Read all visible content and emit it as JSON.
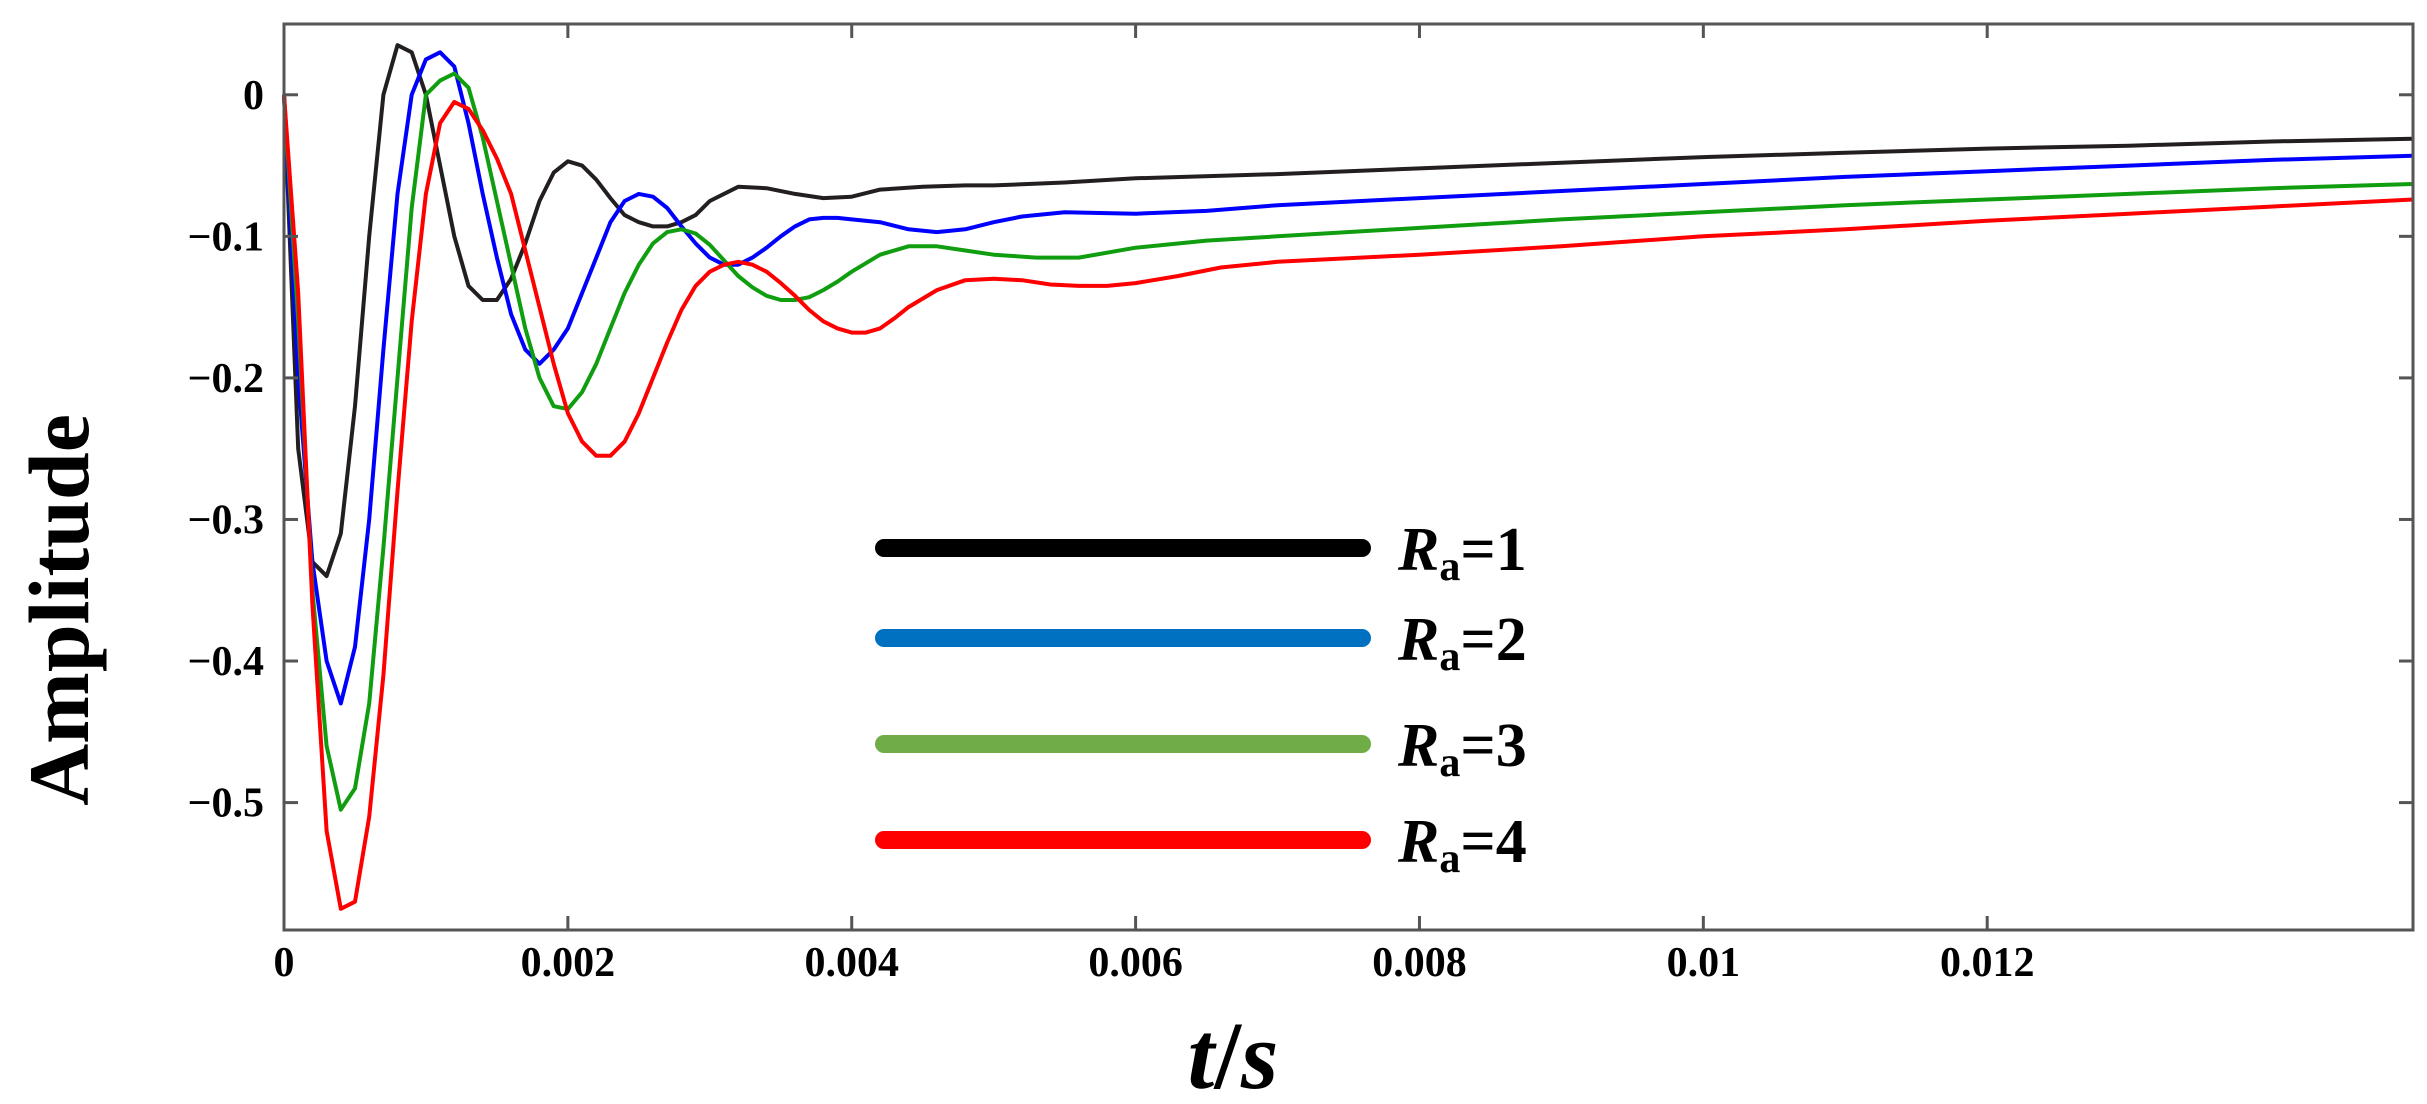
{
  "chart_data": {
    "type": "line",
    "title": "",
    "xlabel": {
      "var": "t",
      "sep": "/",
      "unit": "s"
    },
    "ylabel": "Amplitude",
    "xlim": [
      0,
      0.015
    ],
    "ylim": [
      -0.59,
      0.05
    ],
    "grid": false,
    "legend_position": "center",
    "x_ticks": [
      {
        "value": 0,
        "label": "0"
      },
      {
        "value": 0.002,
        "label": "0.002"
      },
      {
        "value": 0.004,
        "label": "0.004"
      },
      {
        "value": 0.006,
        "label": "0.006"
      },
      {
        "value": 0.008,
        "label": "0.008"
      },
      {
        "value": 0.01,
        "label": "0.01"
      },
      {
        "value": 0.012,
        "label": "0.012"
      }
    ],
    "y_ticks": [
      {
        "value": 0,
        "label": "0"
      },
      {
        "value": -0.1,
        "label": "−0.1"
      },
      {
        "value": -0.2,
        "label": "−0.2"
      },
      {
        "value": -0.3,
        "label": "−0.3"
      },
      {
        "value": -0.4,
        "label": "−0.4"
      },
      {
        "value": -0.5,
        "label": "−0.5"
      }
    ],
    "series": [
      {
        "name": "Ra=1",
        "label_var": "R",
        "label_sub": "a",
        "label_eq": "=1",
        "color": "#231f20",
        "legend_color": "#000000",
        "x": [
          0,
          0.0001,
          0.0002,
          0.0003,
          0.0004,
          0.0005,
          0.0006,
          0.0007,
          0.0008,
          0.0009,
          0.001,
          0.0011,
          0.0012,
          0.0013,
          0.0014,
          0.0015,
          0.0016,
          0.0017,
          0.0018,
          0.0019,
          0.002,
          0.0021,
          0.0022,
          0.0023,
          0.0024,
          0.0025,
          0.0026,
          0.0027,
          0.0028,
          0.0029,
          0.003,
          0.0032,
          0.0034,
          0.0036,
          0.0038,
          0.004,
          0.0042,
          0.0045,
          0.0048,
          0.005,
          0.0055,
          0.006,
          0.007,
          0.008,
          0.009,
          0.01,
          0.011,
          0.012,
          0.013,
          0.014,
          0.015
        ],
        "y": [
          0,
          -0.25,
          -0.33,
          -0.34,
          -0.31,
          -0.22,
          -0.1,
          0.0,
          0.035,
          0.03,
          0.0,
          -0.05,
          -0.1,
          -0.135,
          -0.145,
          -0.145,
          -0.13,
          -0.105,
          -0.075,
          -0.055,
          -0.047,
          -0.05,
          -0.06,
          -0.073,
          -0.085,
          -0.09,
          -0.093,
          -0.093,
          -0.09,
          -0.085,
          -0.075,
          -0.065,
          -0.066,
          -0.07,
          -0.073,
          -0.072,
          -0.067,
          -0.065,
          -0.064,
          -0.064,
          -0.062,
          -0.059,
          -0.056,
          -0.052,
          -0.048,
          -0.044,
          -0.041,
          -0.038,
          -0.036,
          -0.033,
          -0.031
        ]
      },
      {
        "name": "Ra=2",
        "label_var": "R",
        "label_sub": "a",
        "label_eq": "=2",
        "color": "#0000ff",
        "legend_color": "#0070c0",
        "x": [
          0,
          0.0001,
          0.0002,
          0.0003,
          0.0004,
          0.0005,
          0.0006,
          0.0007,
          0.0008,
          0.0009,
          0.001,
          0.0011,
          0.0012,
          0.0013,
          0.0014,
          0.0015,
          0.0016,
          0.0017,
          0.0018,
          0.0019,
          0.002,
          0.0021,
          0.0022,
          0.0023,
          0.0024,
          0.0025,
          0.0026,
          0.0027,
          0.0028,
          0.0029,
          0.003,
          0.0031,
          0.0032,
          0.0033,
          0.0034,
          0.0035,
          0.0036,
          0.0037,
          0.0038,
          0.0039,
          0.004,
          0.0042,
          0.0044,
          0.0046,
          0.0048,
          0.005,
          0.0052,
          0.0055,
          0.006,
          0.0065,
          0.007,
          0.008,
          0.009,
          0.01,
          0.011,
          0.012,
          0.013,
          0.014,
          0.015
        ],
        "y": [
          0,
          -0.2,
          -0.33,
          -0.4,
          -0.43,
          -0.39,
          -0.3,
          -0.18,
          -0.07,
          0.0,
          0.025,
          0.03,
          0.02,
          -0.02,
          -0.07,
          -0.115,
          -0.155,
          -0.18,
          -0.19,
          -0.18,
          -0.165,
          -0.14,
          -0.115,
          -0.09,
          -0.075,
          -0.07,
          -0.072,
          -0.08,
          -0.093,
          -0.105,
          -0.115,
          -0.12,
          -0.12,
          -0.115,
          -0.108,
          -0.1,
          -0.093,
          -0.088,
          -0.087,
          -0.087,
          -0.088,
          -0.09,
          -0.095,
          -0.097,
          -0.095,
          -0.09,
          -0.086,
          -0.083,
          -0.084,
          -0.082,
          -0.078,
          -0.073,
          -0.068,
          -0.063,
          -0.058,
          -0.054,
          -0.05,
          -0.046,
          -0.043
        ]
      },
      {
        "name": "Ra=3",
        "label_var": "R",
        "label_sub": "a",
        "label_eq": "=3",
        "color": "#109d10",
        "legend_color": "#70ad47",
        "x": [
          0,
          0.0001,
          0.0002,
          0.0003,
          0.0004,
          0.0005,
          0.0006,
          0.0007,
          0.0008,
          0.0009,
          0.001,
          0.0011,
          0.0012,
          0.0013,
          0.0014,
          0.0015,
          0.0016,
          0.0017,
          0.0018,
          0.0019,
          0.002,
          0.0021,
          0.0022,
          0.0023,
          0.0024,
          0.0025,
          0.0026,
          0.0027,
          0.0028,
          0.0029,
          0.003,
          0.0031,
          0.0032,
          0.0033,
          0.0034,
          0.0035,
          0.0036,
          0.0037,
          0.0038,
          0.0039,
          0.004,
          0.0042,
          0.0044,
          0.0046,
          0.0048,
          0.005,
          0.0053,
          0.0056,
          0.006,
          0.0065,
          0.007,
          0.008,
          0.009,
          0.01,
          0.011,
          0.012,
          0.013,
          0.014,
          0.015
        ],
        "y": [
          0,
          -0.16,
          -0.35,
          -0.46,
          -0.505,
          -0.49,
          -0.43,
          -0.32,
          -0.2,
          -0.08,
          0.0,
          0.01,
          0.015,
          0.005,
          -0.03,
          -0.075,
          -0.12,
          -0.165,
          -0.2,
          -0.22,
          -0.222,
          -0.21,
          -0.19,
          -0.165,
          -0.14,
          -0.12,
          -0.105,
          -0.097,
          -0.095,
          -0.098,
          -0.106,
          -0.117,
          -0.128,
          -0.136,
          -0.142,
          -0.145,
          -0.145,
          -0.143,
          -0.138,
          -0.132,
          -0.125,
          -0.113,
          -0.107,
          -0.107,
          -0.11,
          -0.113,
          -0.115,
          -0.115,
          -0.108,
          -0.103,
          -0.1,
          -0.094,
          -0.088,
          -0.083,
          -0.078,
          -0.074,
          -0.07,
          -0.066,
          -0.063
        ]
      },
      {
        "name": "Ra=4",
        "label_var": "R",
        "label_sub": "a",
        "label_eq": "=4",
        "color": "#ff0000",
        "legend_color": "#ff0000",
        "x": [
          0,
          0.0001,
          0.0002,
          0.0003,
          0.0004,
          0.0005,
          0.0006,
          0.0007,
          0.0008,
          0.0009,
          0.001,
          0.0011,
          0.0012,
          0.0013,
          0.0014,
          0.0015,
          0.0016,
          0.0017,
          0.0018,
          0.0019,
          0.002,
          0.0021,
          0.0022,
          0.0023,
          0.0024,
          0.0025,
          0.0026,
          0.0027,
          0.0028,
          0.0029,
          0.003,
          0.0031,
          0.0032,
          0.0033,
          0.0034,
          0.0035,
          0.0036,
          0.0037,
          0.0038,
          0.0039,
          0.004,
          0.0041,
          0.0042,
          0.0043,
          0.0044,
          0.0046,
          0.0048,
          0.005,
          0.0052,
          0.0054,
          0.0056,
          0.0058,
          0.006,
          0.0063,
          0.0066,
          0.007,
          0.008,
          0.009,
          0.01,
          0.011,
          0.012,
          0.013,
          0.014,
          0.015
        ],
        "y": [
          0,
          -0.14,
          -0.36,
          -0.52,
          -0.575,
          -0.57,
          -0.51,
          -0.41,
          -0.28,
          -0.16,
          -0.07,
          -0.02,
          -0.005,
          -0.01,
          -0.025,
          -0.045,
          -0.07,
          -0.11,
          -0.15,
          -0.19,
          -0.225,
          -0.245,
          -0.255,
          -0.255,
          -0.245,
          -0.225,
          -0.2,
          -0.175,
          -0.152,
          -0.135,
          -0.125,
          -0.12,
          -0.118,
          -0.12,
          -0.125,
          -0.133,
          -0.142,
          -0.152,
          -0.16,
          -0.165,
          -0.168,
          -0.168,
          -0.165,
          -0.158,
          -0.15,
          -0.138,
          -0.131,
          -0.13,
          -0.131,
          -0.134,
          -0.135,
          -0.135,
          -0.133,
          -0.128,
          -0.122,
          -0.118,
          -0.113,
          -0.107,
          -0.1,
          -0.095,
          -0.089,
          -0.084,
          -0.079,
          -0.074
        ]
      }
    ]
  }
}
